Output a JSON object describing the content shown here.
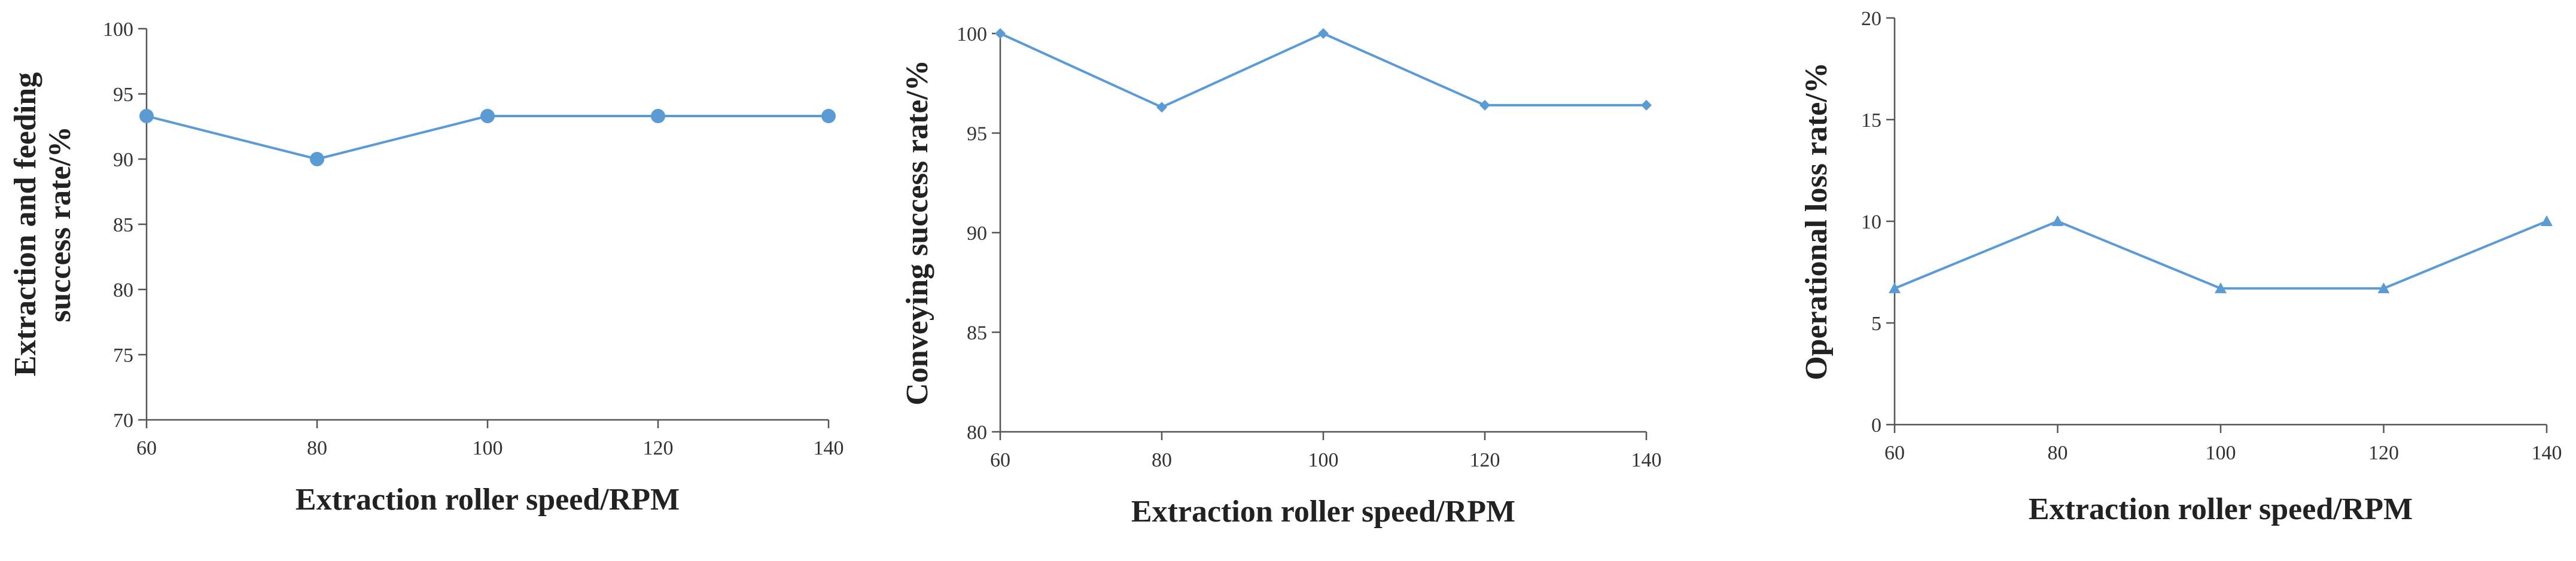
{
  "chart_data": [
    {
      "type": "line",
      "xlabel": "Extraction roller speed/RPM",
      "ylabel": [
        "Extraction and feeding",
        "success rate/%"
      ],
      "x": [
        60,
        80,
        100,
        120,
        140
      ],
      "xticks": [
        "60",
        "80",
        "100",
        "120",
        "140"
      ],
      "ylim": [
        70,
        100
      ],
      "yticks": [
        "70",
        "75",
        "80",
        "85",
        "90",
        "95",
        "100"
      ],
      "marker": "circle",
      "color": "#5b9bd5",
      "grid": false,
      "series": [
        {
          "values": [
            93.3,
            90,
            93.3,
            93.3,
            93.3
          ]
        }
      ]
    },
    {
      "type": "line",
      "xlabel": "Extraction roller speed/RPM",
      "ylabel": [
        "Conveying success rate/%"
      ],
      "x": [
        60,
        80,
        100,
        120,
        140
      ],
      "xticks": [
        "60",
        "80",
        "100",
        "120",
        "140"
      ],
      "ylim": [
        80,
        100
      ],
      "yticks": [
        "80",
        "85",
        "90",
        "95",
        "100"
      ],
      "marker": "diamond",
      "color": "#5b9bd5",
      "grid": false,
      "series": [
        {
          "values": [
            100,
            96.3,
            100,
            96.4,
            96.4
          ]
        }
      ]
    },
    {
      "type": "line",
      "xlabel": "Extraction roller speed/RPM",
      "ylabel": [
        "Operational loss rate/%"
      ],
      "x": [
        60,
        80,
        100,
        120,
        140
      ],
      "xticks": [
        "60",
        "80",
        "100",
        "120",
        "140"
      ],
      "ylim": [
        0,
        20
      ],
      "yticks": [
        "0",
        "5",
        "10",
        "15",
        "20"
      ],
      "marker": "triangle",
      "color": "#5b9bd5",
      "grid": false,
      "series": [
        {
          "values": [
            6.7,
            10,
            6.7,
            6.7,
            10
          ]
        }
      ]
    }
  ]
}
